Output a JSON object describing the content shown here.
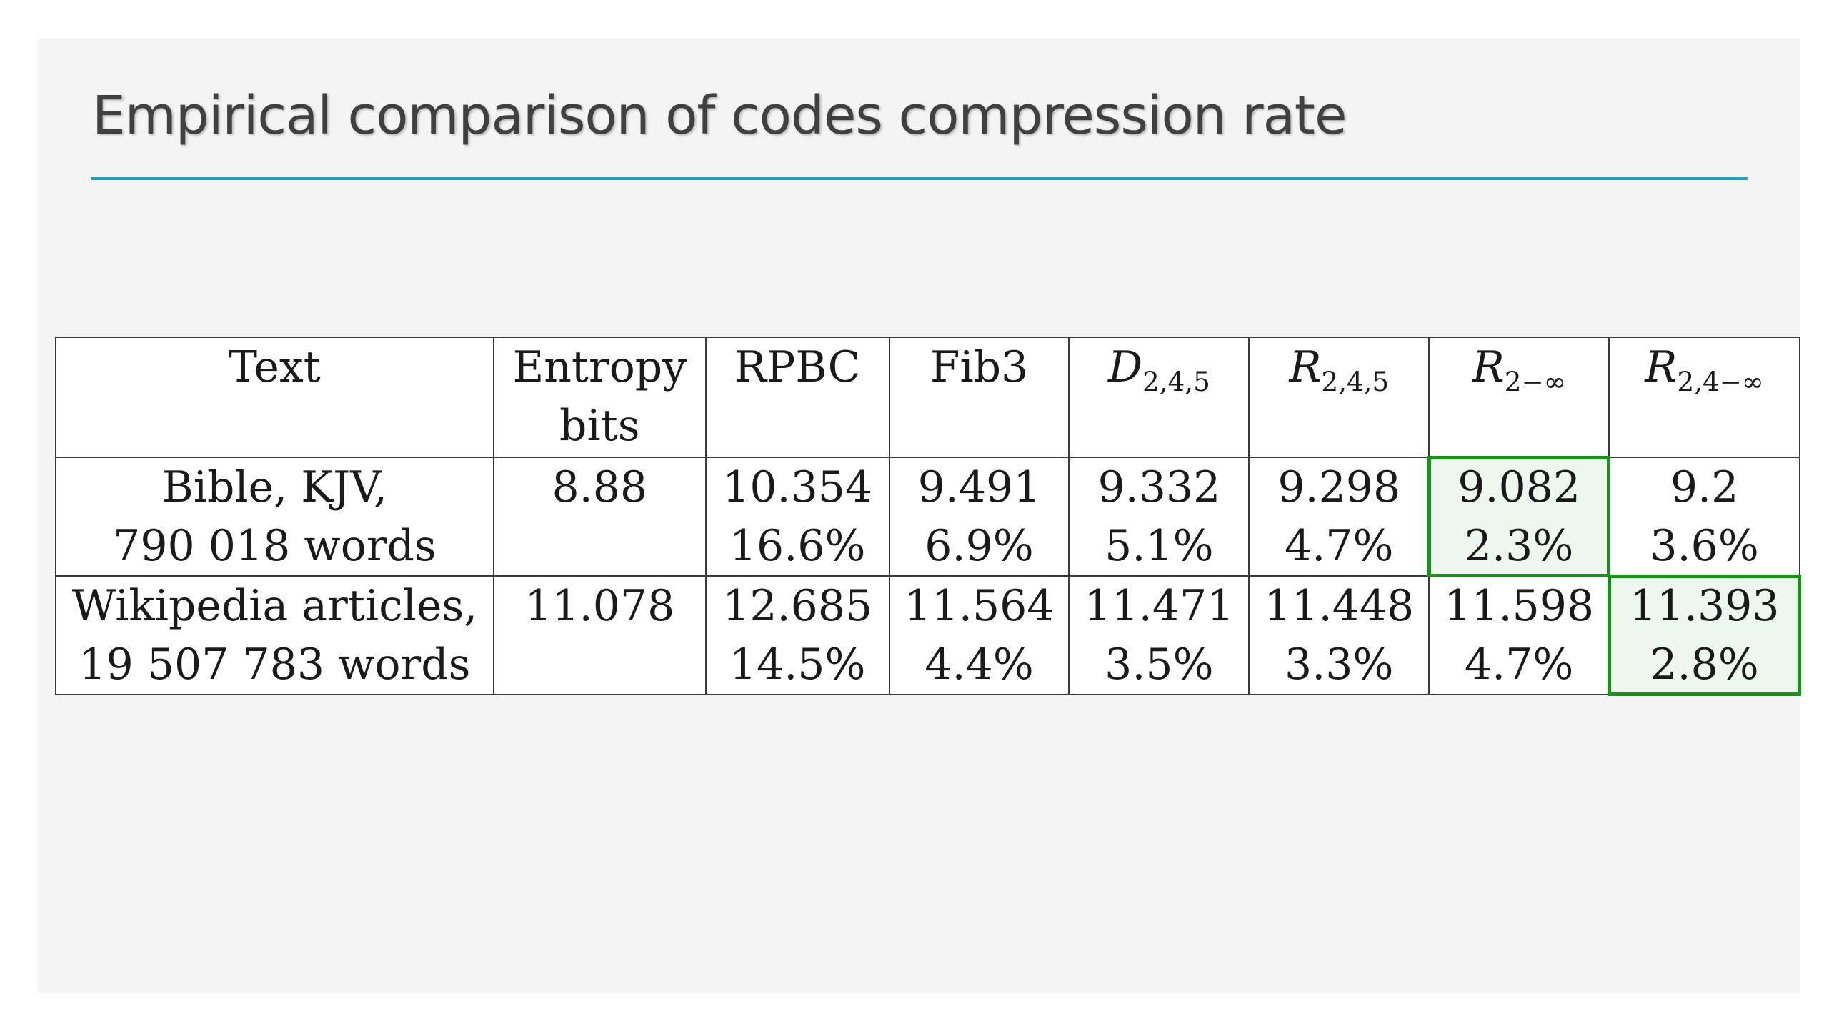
{
  "slide": {
    "title": "Empirical comparison of codes compression rate"
  },
  "table": {
    "header": [
      {
        "lines": [
          "Text"
        ]
      },
      {
        "lines": [
          "Entropy",
          "bits"
        ]
      },
      {
        "lines": [
          "RPBC"
        ]
      },
      {
        "lines": [
          "Fib3"
        ]
      },
      {
        "math": "D",
        "sub": "2,4,5"
      },
      {
        "math": "R",
        "sub": "2,4,5"
      },
      {
        "math": "R",
        "sub": "2−∞"
      },
      {
        "math": "R",
        "sub": "2,4−∞"
      }
    ],
    "rows": [
      {
        "text": [
          "Bible, KJV,",
          "790 018 words"
        ],
        "entropy": "8.88",
        "cells": [
          {
            "value": "10.354",
            "pct": "16.6%"
          },
          {
            "value": "9.491",
            "pct": "6.9%"
          },
          {
            "value": "9.332",
            "pct": "5.1%"
          },
          {
            "value": "9.298",
            "pct": "4.7%"
          },
          {
            "value": "9.082",
            "pct": "2.3%",
            "highlighted": true
          },
          {
            "value": "9.2",
            "pct": "3.6%"
          }
        ]
      },
      {
        "text": [
          "Wikipedia articles,",
          "19 507 783 words"
        ],
        "entropy": "11.078",
        "cells": [
          {
            "value": "12.685",
            "pct": "14.5%"
          },
          {
            "value": "11.564",
            "pct": "4.4%"
          },
          {
            "value": "11.471",
            "pct": "3.5%"
          },
          {
            "value": "11.448",
            "pct": "3.3%"
          },
          {
            "value": "11.598",
            "pct": "4.7%"
          },
          {
            "value": "11.393",
            "pct": "2.8%",
            "highlighted": true
          }
        ]
      }
    ],
    "highlight_color": "#1a911a",
    "accent_color": "#1aa2c6"
  }
}
